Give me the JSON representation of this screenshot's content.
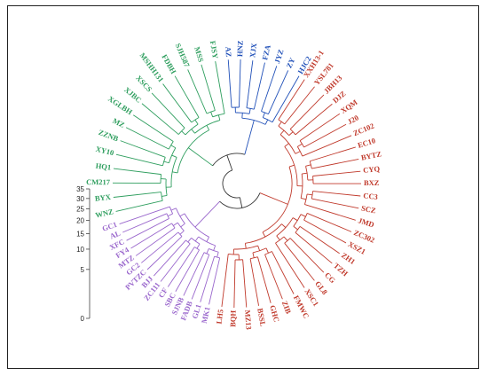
{
  "colors": {
    "green": "#2e9e5e",
    "blue": "#1f4fb8",
    "red": "#c0392b",
    "purple": "#9966cc",
    "root": "#333333"
  },
  "scale": {
    "ticks": [
      "35",
      "30",
      "25",
      "20",
      "15",
      "10",
      "5",
      "0"
    ]
  },
  "clades": {
    "green": [
      "WNZ",
      "BYX",
      "CM217",
      "HQ1",
      "XY10",
      "ZZNB",
      "MZ",
      "XGLBH",
      "XJBC",
      "XSCS",
      "MSHH131",
      "FDBH",
      "SJH587",
      "MSS",
      "FJSY"
    ],
    "blue": [
      "AZ",
      "HNZ",
      "XJX",
      "FZA",
      "JYZ",
      "ZY",
      "HJC2"
    ],
    "red": [
      "XXH13-1",
      "YSL781",
      "JBH13",
      "DJZ",
      "XQM",
      "J20",
      "ZC102",
      "EC10",
      "BYTZ",
      "CYQ",
      "BXZ",
      "CC3",
      "SCZ",
      "JMD",
      "ZC302",
      "XSZ1",
      "ZH1",
      "TZH",
      "CG",
      "GL8",
      "XSC1",
      "FMWC",
      "ZIB",
      "GHC",
      "BSSL",
      "MZ13",
      "BQH",
      "LH5"
    ],
    "purple": [
      "MK1",
      "GL1",
      "FADB",
      "SJNB",
      "SBC",
      "CF",
      "ZC111",
      "BJJ",
      "PVTZC",
      "GC2",
      "MTZ",
      "FY4",
      "XFC",
      "AL",
      "GC1"
    ]
  }
}
